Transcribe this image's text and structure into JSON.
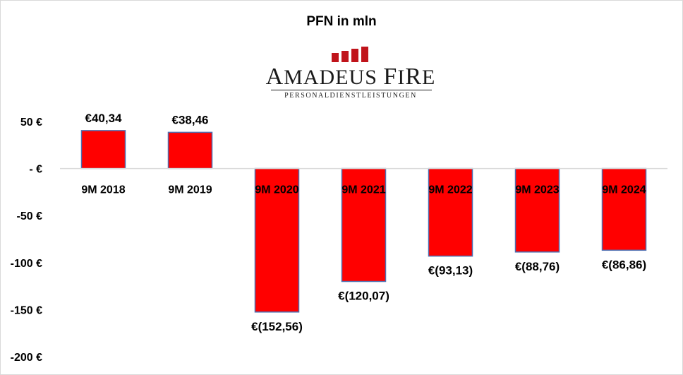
{
  "chart_data": {
    "type": "bar",
    "title": "PFN in mln",
    "categories": [
      "9M 2018",
      "9M 2019",
      "9M 2020",
      "9M 2021",
      "9M 2022",
      "9M 2023",
      "9M 2024"
    ],
    "series": [
      {
        "values": [
          40.34,
          38.46,
          -152.56,
          -120.07,
          -93.13,
          -88.76,
          -86.86
        ],
        "labels": [
          "€40,34",
          "€38,46",
          "€(152,56)",
          "€(120,07)",
          "€(93,13)",
          "€(88,76)",
          "€(86,86)"
        ],
        "color": "#ff0000"
      }
    ],
    "yticks": [
      {
        "value": 50,
        "label": "50 €"
      },
      {
        "value": 0,
        "label": "- €"
      },
      {
        "value": -50,
        "label": "-50 €"
      },
      {
        "value": -100,
        "label": "-100 €"
      },
      {
        "value": -150,
        "label": "-150 €"
      },
      {
        "value": -200,
        "label": "-200 €"
      }
    ],
    "ylim": [
      -200,
      50
    ],
    "grid": false,
    "legend": "none",
    "bar_border_color": "#4f6fb0",
    "axis_color": "#d9d9d9"
  },
  "logo": {
    "name": "AMADEUS FIRE",
    "name_parts": [
      {
        "text": "A",
        "size": "big"
      },
      {
        "text": "MADEUS ",
        "size": "small"
      },
      {
        "text": "F",
        "size": "big"
      },
      {
        "text": "I",
        "size": "small"
      },
      {
        "text": "R",
        "size": "big"
      },
      {
        "text": "E",
        "size": "small"
      }
    ],
    "tagline": "PERSONALDIENSTLEISTUNGEN",
    "bars_color": "#c0141b"
  }
}
